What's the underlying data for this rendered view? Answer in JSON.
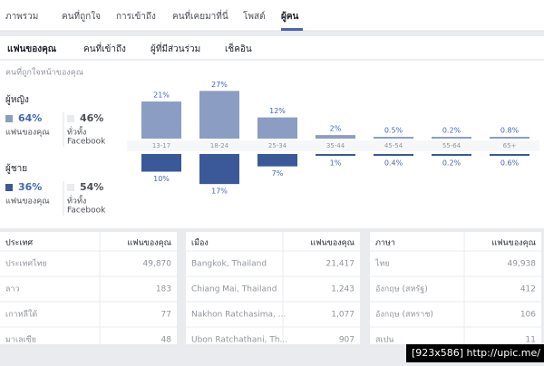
{
  "tabs": [
    "ภาพรวม",
    "คนที่ถูกใจ",
    "การเข้าถึง",
    "คนที่เคยมาที่นี่",
    "โพสต์",
    "ผู้คน"
  ],
  "subtabs": [
    "แฟนของคุณ",
    "คนที่เข้าถึง",
    "ผู้ที่มีส่วนร่วม",
    "เช็คอิน"
  ],
  "section_title": "คนที่ถูกใจหน้าของคุณ",
  "summary": [
    {
      "label": "ผู้หญิง",
      "fans_pct": "64%",
      "fans_label": "แฟนของคุณ",
      "fb_pct": "46%",
      "fb_label_1": "ทั่วทั้ง",
      "fb_label_2": "Facebook"
    },
    {
      "label": "ผู้ชาย",
      "fans_pct": "36%",
      "fans_label": "แฟนของคุณ",
      "fb_pct": "54%",
      "fb_label_1": "ทั่วทั้ง",
      "fb_label_2": "Facebook"
    }
  ],
  "chart_data": {
    "type": "bar",
    "categories": [
      "13-17",
      "18-24",
      "25-34",
      "35-44",
      "45-54",
      "55-64",
      "65+"
    ],
    "series": [
      {
        "name": "ผู้หญิง",
        "color": "#8b9dc3",
        "values": [
          21,
          27,
          12,
          2,
          0.5,
          0.2,
          0.8
        ],
        "value_labels": [
          "21%",
          "27%",
          "12%",
          "2%",
          "0.5%",
          "0.2%",
          "0.8%"
        ]
      },
      {
        "name": "ผู้ชาย",
        "color": "#3b5998",
        "values": [
          10,
          17,
          7,
          1,
          0.4,
          0.2,
          0.6
        ],
        "value_labels": [
          "10%",
          "17%",
          "7%",
          "1%",
          "0.4%",
          "0.2%",
          "0.6%"
        ]
      }
    ]
  },
  "tables": [
    {
      "header": [
        "ประเทศ",
        "แฟนของคุณ"
      ],
      "rows": [
        [
          "ประเทศไทย",
          "49,870"
        ],
        [
          "ลาว",
          "183"
        ],
        [
          "เกาหลีใต้",
          "77"
        ],
        [
          "มาเลเซีย",
          "48"
        ]
      ]
    },
    {
      "header": [
        "เมือง",
        "แฟนของคุณ"
      ],
      "rows": [
        [
          "Bangkok, Thailand",
          "21,417"
        ],
        [
          "Chiang Mai, Thailand",
          "1,243"
        ],
        [
          "Nakhon Ratchasima, ...",
          "1,077"
        ],
        [
          "Ubon Ratchathani, Th...",
          "907"
        ]
      ]
    },
    {
      "header": [
        "ภาษา",
        "แฟนของคุณ"
      ],
      "rows": [
        [
          "ไทย",
          "49,938"
        ],
        [
          "อังกฤษ (สหรัฐ)",
          "412"
        ],
        [
          "อังกฤษ (สหราช)",
          "106"
        ],
        [
          "สเปน",
          "11"
        ]
      ]
    }
  ],
  "watermark": "[923x586] http://upic.me/"
}
